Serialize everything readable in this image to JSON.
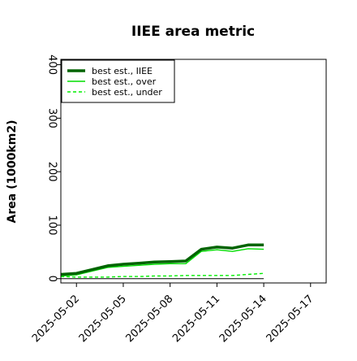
{
  "chart_data": {
    "type": "line",
    "title": "IIEE area metric",
    "xlabel": "",
    "ylabel": "Area (1000km2)",
    "x_type": "date",
    "xlim": [
      "2025-05-01",
      "2025-05-18"
    ],
    "ylim": [
      -8,
      410
    ],
    "x_tick_labels": [
      "2025-05-02",
      "2025-05-05",
      "2025-05-08",
      "2025-05-11",
      "2025-05-14",
      "2025-05-17"
    ],
    "y_ticks": [
      0,
      100,
      200,
      300,
      400
    ],
    "y_tick_labels": [
      "0",
      "100",
      "200",
      "300",
      "400"
    ],
    "grid": false,
    "legend_position": "top-left",
    "x": [
      "2025-05-01",
      "2025-05-02",
      "2025-05-03",
      "2025-05-04",
      "2025-05-05",
      "2025-05-06",
      "2025-05-07",
      "2025-05-08",
      "2025-05-09",
      "2025-05-10",
      "2025-05-11",
      "2025-05-12",
      "2025-05-13",
      "2025-05-14"
    ],
    "baseline": {
      "value": 0,
      "color": "#000000"
    },
    "series": [
      {
        "name": "best est., IIEE",
        "style": "solid",
        "width": "thick",
        "color": "#006400",
        "values": [
          8,
          10,
          17,
          24,
          27,
          29,
          31,
          32,
          33,
          55,
          59,
          57,
          63,
          63
        ]
      },
      {
        "name": "best est., over",
        "style": "solid",
        "width": "thin",
        "color": "#00dd00",
        "values": [
          5,
          7,
          14,
          21,
          23,
          25,
          27,
          28,
          28,
          51,
          54,
          51,
          56,
          55
        ]
      },
      {
        "name": "best est., under",
        "style": "dashed",
        "width": "thin",
        "color": "#00ee00",
        "values": [
          4,
          3,
          3,
          3,
          4,
          4,
          5,
          5,
          6,
          6,
          6,
          6,
          8,
          10
        ]
      }
    ]
  }
}
